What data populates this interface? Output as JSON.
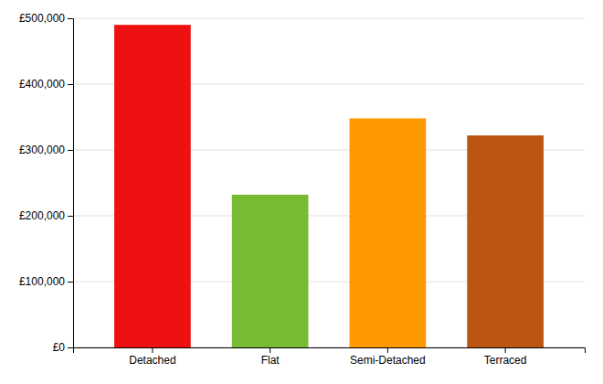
{
  "chart_data": {
    "type": "bar",
    "categories": [
      "Detached",
      "Flat",
      "Semi-Detached",
      "Terraced"
    ],
    "values": [
      490000,
      232000,
      348000,
      322000
    ],
    "colors": [
      "#ee1111",
      "#77bb33",
      "#ff9900",
      "#bb5511"
    ],
    "ylim": [
      0,
      500000
    ],
    "yticks": [
      {
        "value": 0,
        "label": "£0"
      },
      {
        "value": 100000,
        "label": "£100,000"
      },
      {
        "value": 200000,
        "label": "£200,000"
      },
      {
        "value": 300000,
        "label": "£300,000"
      },
      {
        "value": 400000,
        "label": "£400,000"
      },
      {
        "value": 500000,
        "label": "£500,000"
      }
    ],
    "grid": true
  }
}
